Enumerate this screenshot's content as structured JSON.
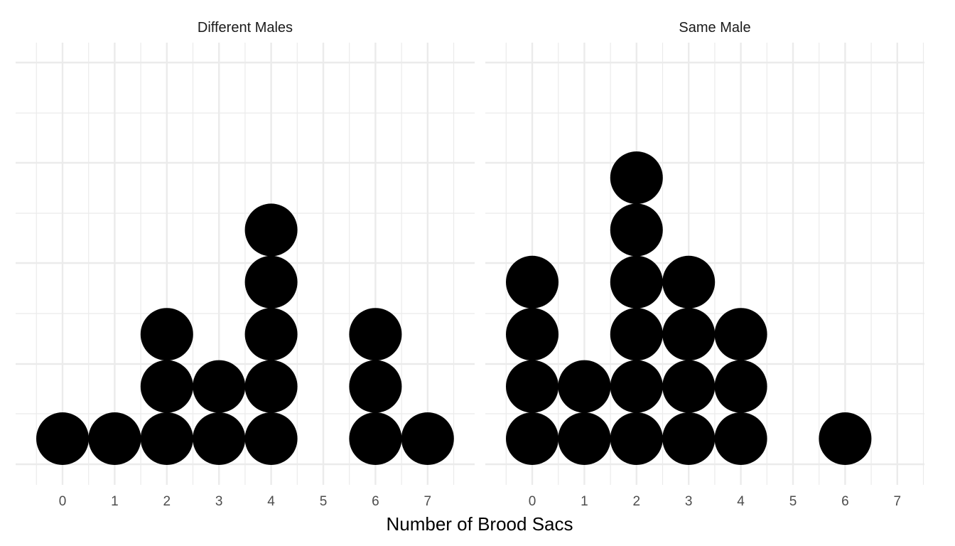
{
  "chart_data": {
    "type": "dotplot",
    "xlabel": "Number of Brood Sacs",
    "ylabel": "",
    "x_ticks": [
      0,
      1,
      2,
      3,
      4,
      5,
      6,
      7
    ],
    "xlim": [
      -0.5,
      7.5
    ],
    "grid": true,
    "dot_color": "#000000",
    "grid_color": "#ebebeb",
    "panels": [
      {
        "facet": "Different Males",
        "points": [
          {
            "x": 0,
            "count": 1
          },
          {
            "x": 1,
            "count": 1
          },
          {
            "x": 2,
            "count": 3
          },
          {
            "x": 3,
            "count": 2
          },
          {
            "x": 4,
            "count": 5
          },
          {
            "x": 6,
            "count": 3
          },
          {
            "x": 7,
            "count": 1
          }
        ]
      },
      {
        "facet": "Same Male",
        "points": [
          {
            "x": 0,
            "count": 4
          },
          {
            "x": 1,
            "count": 2
          },
          {
            "x": 2,
            "count": 6
          },
          {
            "x": 3,
            "count": 4
          },
          {
            "x": 4,
            "count": 3
          },
          {
            "x": 6,
            "count": 1
          }
        ]
      }
    ]
  }
}
